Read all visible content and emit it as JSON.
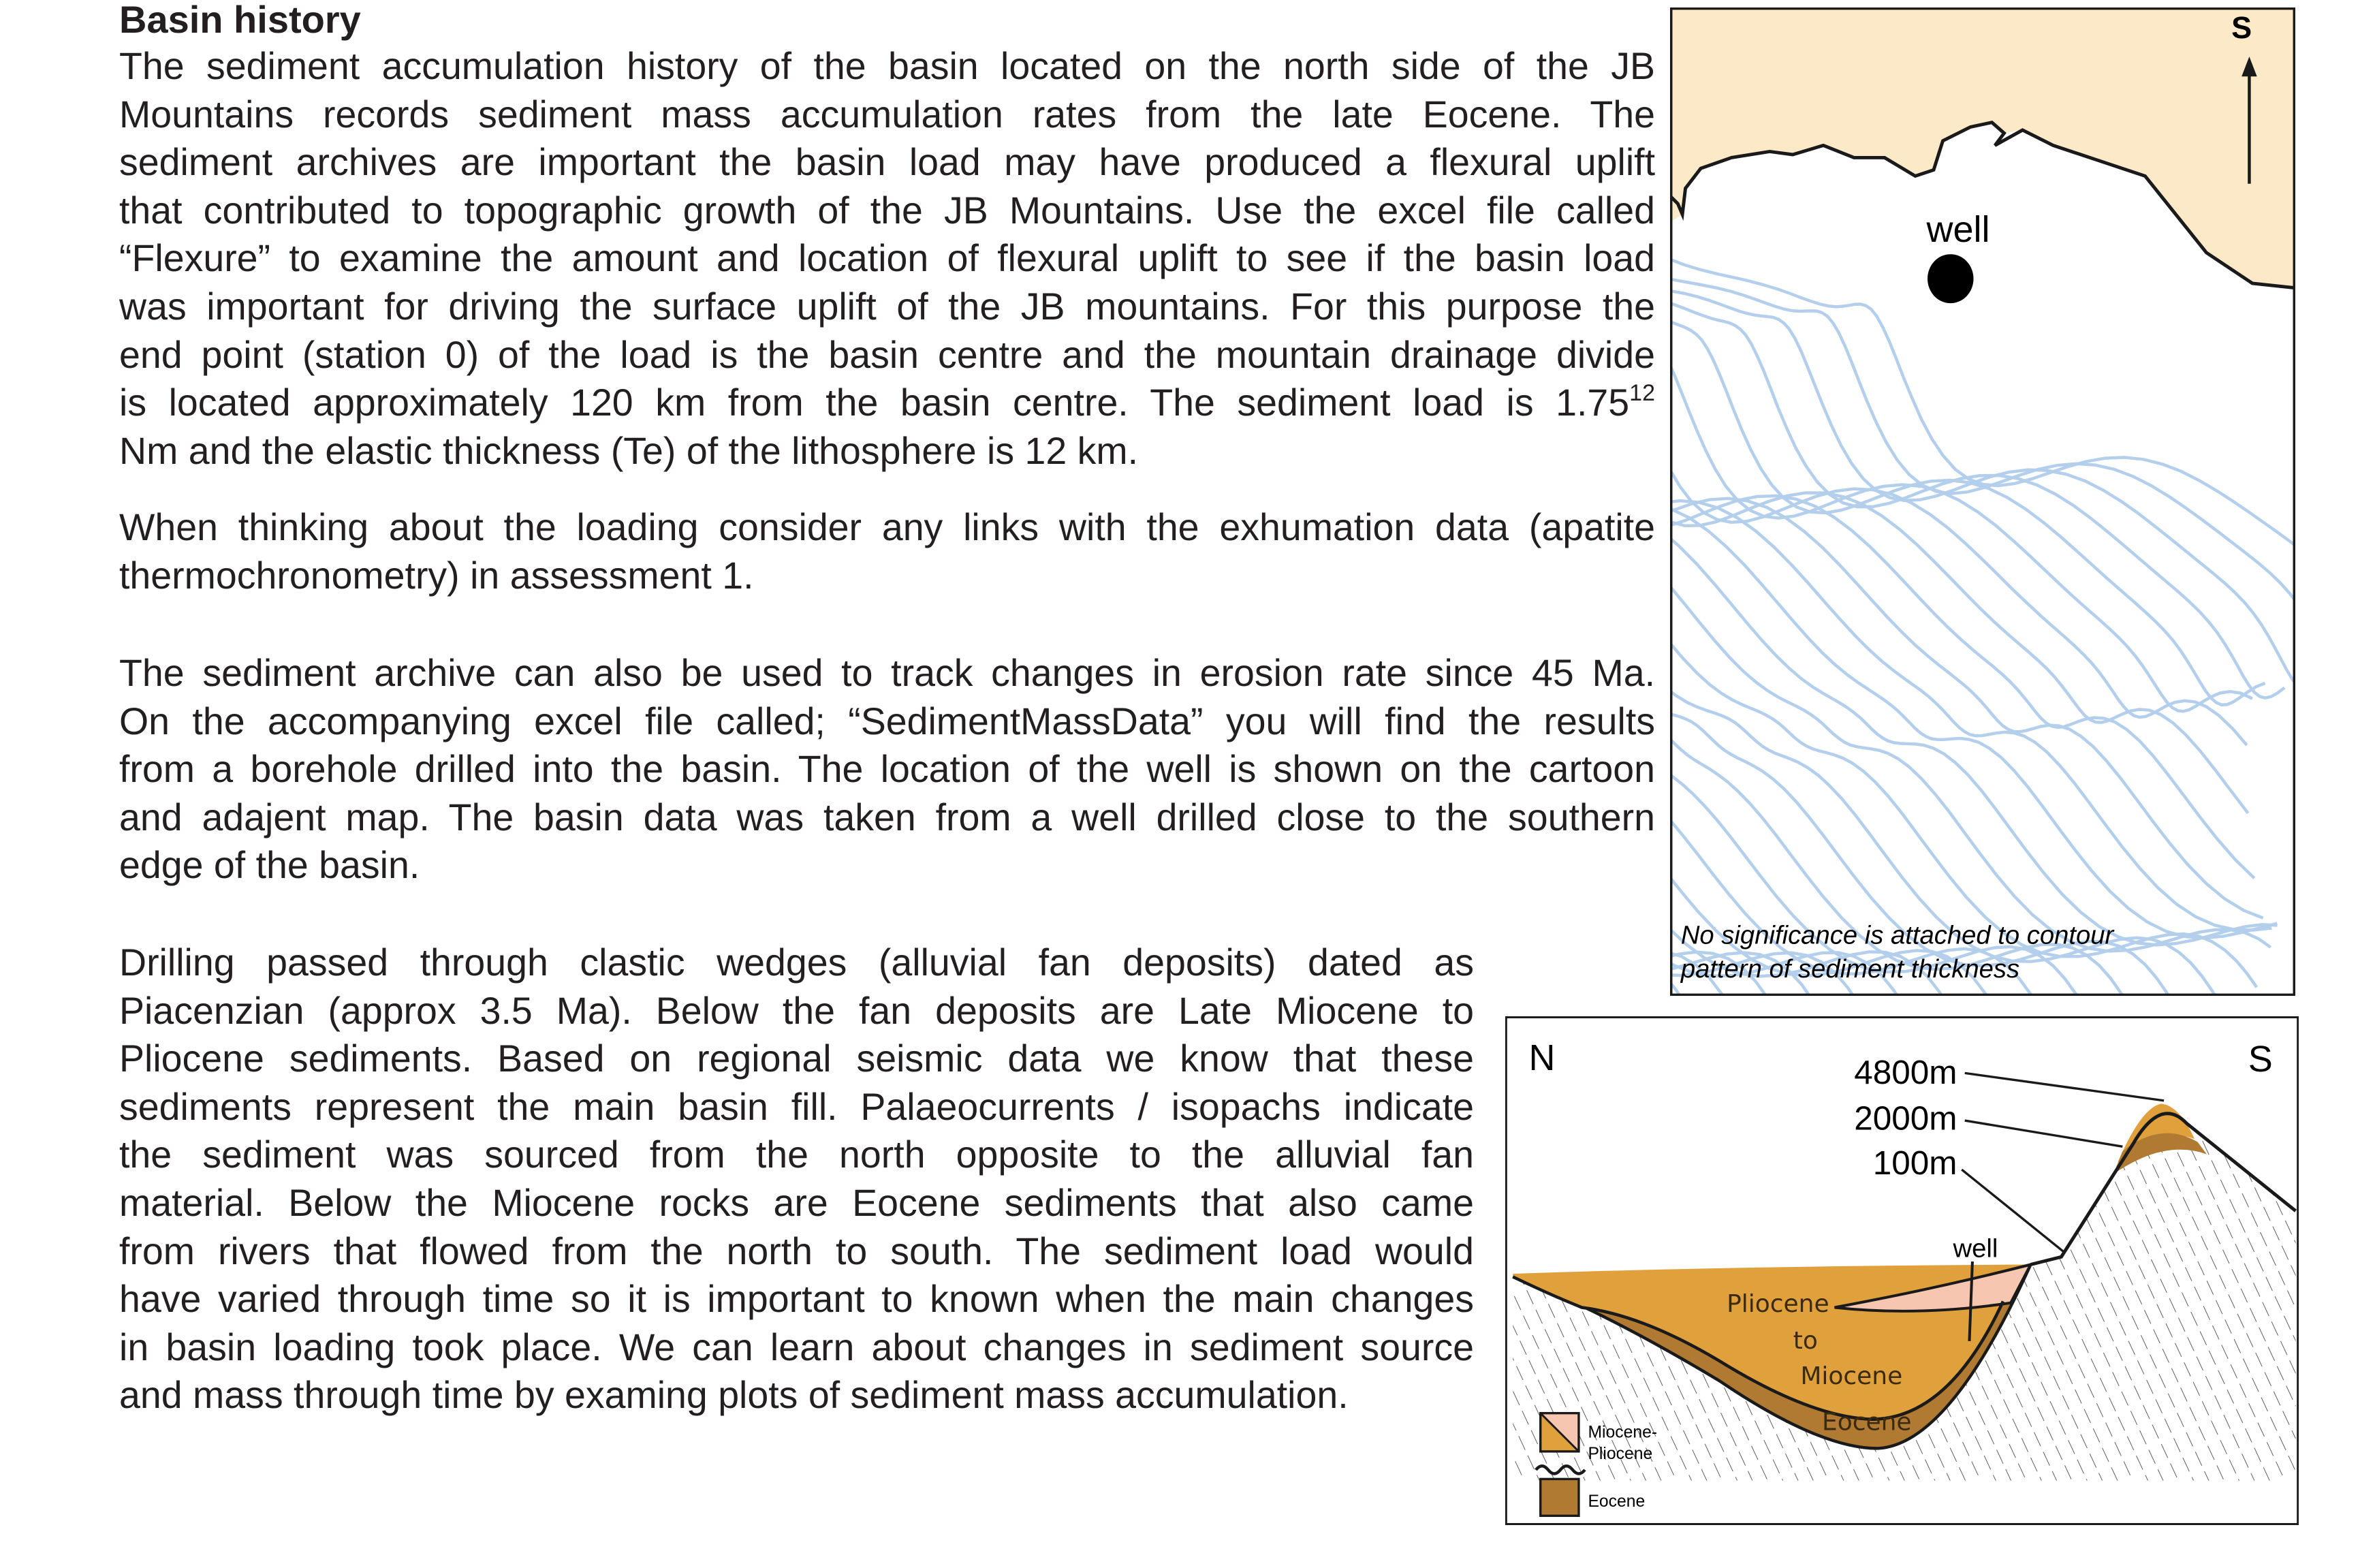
{
  "title": "Basin history",
  "paragraphs": {
    "p1": [
      "The sediment accumulation history of the basin located on the north side of the JB",
      "Mountains records sediment mass accumulation rates from the late Eocene. The",
      "sediment archives are important the basin load may have produced a flexural uplift",
      "that contributed to topographic growth of the JB Mountains. Use the excel file called",
      "“Flexure” to examine the amount and location of flexural uplift to see if the basin load",
      "was important for driving the surface uplift of the JB mountains. For this purpose the",
      "end point (station 0) of the load is the basin centre and the mountain drainage divide",
      "is located approximately 120 km from the basin centre. The sediment load is 1.75",
      "Nm and the elastic thickness (Te) of the lithosphere is 12 km."
    ],
    "p1_superscript": "12",
    "p2": [
      "When thinking about the loading consider any links with the exhumation data (apatite",
      "thermochronometry) in assessment 1."
    ],
    "p3": [
      "The sediment archive can also be used to track changes in erosion rate since 45 Ma.",
      "On the accompanying excel file called;  “SedimentMassData” you will find the results",
      "from a borehole drilled into the basin. The location of the well is shown on the cartoon",
      "and adajent map. The basin data was taken from a well  drilled close to the southern",
      "edge of the basin."
    ],
    "p4": [
      "Drilling passed through clastic wedges (alluvial fan deposits) dated as",
      "Piacenzian (approx 3.5 Ma). Below the fan deposits are Late Miocene to",
      "Pliocene sediments. Based on regional seismic data we know that these",
      "sediments represent the main basin fill.  Palaeocurrents / isopachs indicate",
      "the sediment was sourced from the north opposite to the alluvial fan",
      "material. Below the Miocene rocks are Eocene sediments that also came",
      "from rivers that flowed from the north to south. The sediment load would",
      "have varied through time so it is important to known when the main changes",
      "in basin loading took place. We can learn about changes in sediment source",
      "and mass through time by examing plots of sediment mass accumulation."
    ]
  },
  "map": {
    "direction_label": "S",
    "well_label": "well",
    "caption": [
      "No significance is attached to contour",
      "pattern of sediment thickness"
    ],
    "colors": {
      "land": "#fbe9c8",
      "contour": "#b3cfec",
      "well": "#000000"
    }
  },
  "cross_section": {
    "north_label": "N",
    "south_label": "S",
    "elevations": [
      "4800m",
      "2000m",
      "100m"
    ],
    "well_label": "well",
    "unit_labels": {
      "upper": [
        "Pliocene",
        "to",
        "Miocene"
      ],
      "lower": "Eocene"
    },
    "legend": [
      {
        "label": [
          "Miocene-",
          "Pliocene"
        ],
        "color": "#e0a13c",
        "color2": "#f7c6b1"
      },
      {
        "label": [
          "Eocene"
        ],
        "color": "#b07a33"
      }
    ],
    "colors": {
      "miocene_pliocene": "#e0a13c",
      "eocene": "#b07a33",
      "pink_lens": "#f7c6b1"
    }
  }
}
